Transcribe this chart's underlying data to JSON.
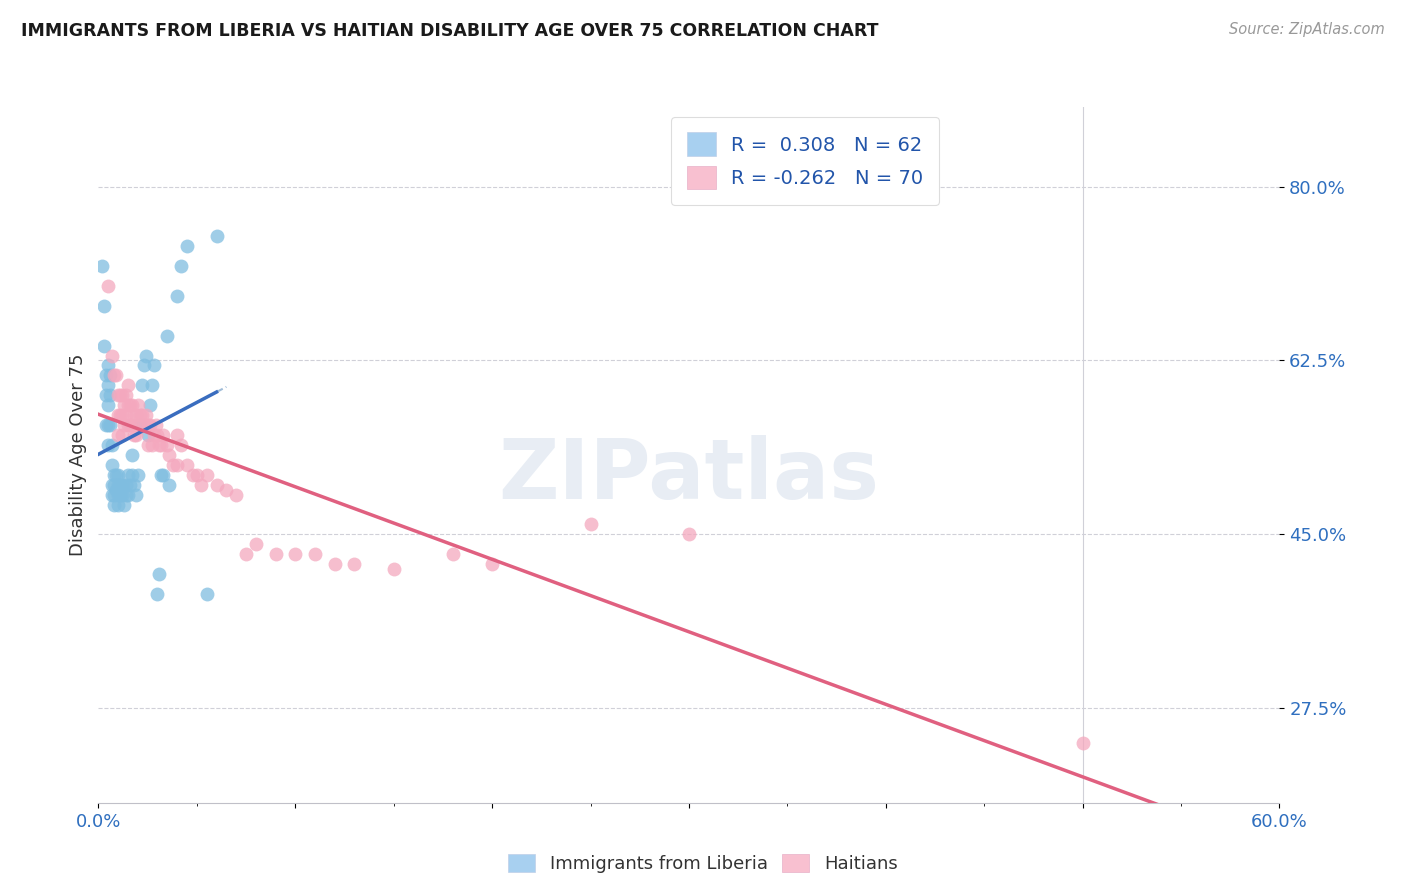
{
  "title": "IMMIGRANTS FROM LIBERIA VS HAITIAN DISABILITY AGE OVER 75 CORRELATION CHART",
  "source": "Source: ZipAtlas.com",
  "ylabel": "Disability Age Over 75",
  "y_ticks": [
    0.275,
    0.45,
    0.625,
    0.8
  ],
  "y_tick_labels": [
    "27.5%",
    "45.0%",
    "62.5%",
    "80.0%"
  ],
  "x_min": 0.0,
  "x_max": 0.6,
  "y_min": 0.18,
  "y_max": 0.88,
  "liberia_color": "#7fbde0",
  "haitian_color": "#f4a8be",
  "liberia_legend_color": "#a8d0f0",
  "haitian_legend_color": "#f8c0d0",
  "watermark": "ZIPatlas",
  "liberia_points": [
    [
      0.002,
      0.72
    ],
    [
      0.003,
      0.68
    ],
    [
      0.003,
      0.64
    ],
    [
      0.004,
      0.61
    ],
    [
      0.004,
      0.59
    ],
    [
      0.004,
      0.56
    ],
    [
      0.005,
      0.62
    ],
    [
      0.005,
      0.6
    ],
    [
      0.005,
      0.58
    ],
    [
      0.005,
      0.56
    ],
    [
      0.005,
      0.54
    ],
    [
      0.006,
      0.61
    ],
    [
      0.006,
      0.59
    ],
    [
      0.006,
      0.56
    ],
    [
      0.007,
      0.54
    ],
    [
      0.007,
      0.52
    ],
    [
      0.007,
      0.5
    ],
    [
      0.007,
      0.49
    ],
    [
      0.008,
      0.51
    ],
    [
      0.008,
      0.5
    ],
    [
      0.008,
      0.49
    ],
    [
      0.008,
      0.48
    ],
    [
      0.009,
      0.51
    ],
    [
      0.009,
      0.495
    ],
    [
      0.01,
      0.51
    ],
    [
      0.01,
      0.5
    ],
    [
      0.01,
      0.49
    ],
    [
      0.01,
      0.48
    ],
    [
      0.011,
      0.5
    ],
    [
      0.011,
      0.49
    ],
    [
      0.012,
      0.5
    ],
    [
      0.012,
      0.49
    ],
    [
      0.013,
      0.48
    ],
    [
      0.014,
      0.5
    ],
    [
      0.014,
      0.49
    ],
    [
      0.015,
      0.51
    ],
    [
      0.015,
      0.49
    ],
    [
      0.016,
      0.5
    ],
    [
      0.017,
      0.53
    ],
    [
      0.017,
      0.51
    ],
    [
      0.018,
      0.5
    ],
    [
      0.019,
      0.49
    ],
    [
      0.02,
      0.51
    ],
    [
      0.021,
      0.56
    ],
    [
      0.022,
      0.6
    ],
    [
      0.023,
      0.62
    ],
    [
      0.024,
      0.63
    ],
    [
      0.025,
      0.55
    ],
    [
      0.026,
      0.58
    ],
    [
      0.027,
      0.6
    ],
    [
      0.028,
      0.62
    ],
    [
      0.03,
      0.39
    ],
    [
      0.031,
      0.41
    ],
    [
      0.032,
      0.51
    ],
    [
      0.033,
      0.51
    ],
    [
      0.035,
      0.65
    ],
    [
      0.036,
      0.5
    ],
    [
      0.04,
      0.69
    ],
    [
      0.042,
      0.72
    ],
    [
      0.045,
      0.74
    ],
    [
      0.055,
      0.39
    ],
    [
      0.06,
      0.75
    ]
  ],
  "haitian_points": [
    [
      0.005,
      0.7
    ],
    [
      0.007,
      0.63
    ],
    [
      0.008,
      0.61
    ],
    [
      0.009,
      0.61
    ],
    [
      0.01,
      0.59
    ],
    [
      0.01,
      0.57
    ],
    [
      0.01,
      0.55
    ],
    [
      0.011,
      0.59
    ],
    [
      0.011,
      0.57
    ],
    [
      0.012,
      0.59
    ],
    [
      0.012,
      0.57
    ],
    [
      0.012,
      0.55
    ],
    [
      0.013,
      0.58
    ],
    [
      0.013,
      0.56
    ],
    [
      0.014,
      0.59
    ],
    [
      0.014,
      0.57
    ],
    [
      0.015,
      0.6
    ],
    [
      0.015,
      0.58
    ],
    [
      0.015,
      0.56
    ],
    [
      0.016,
      0.58
    ],
    [
      0.016,
      0.56
    ],
    [
      0.017,
      0.58
    ],
    [
      0.017,
      0.56
    ],
    [
      0.018,
      0.57
    ],
    [
      0.018,
      0.55
    ],
    [
      0.019,
      0.57
    ],
    [
      0.019,
      0.55
    ],
    [
      0.02,
      0.58
    ],
    [
      0.02,
      0.56
    ],
    [
      0.021,
      0.57
    ],
    [
      0.022,
      0.57
    ],
    [
      0.023,
      0.56
    ],
    [
      0.024,
      0.57
    ],
    [
      0.025,
      0.56
    ],
    [
      0.025,
      0.54
    ],
    [
      0.026,
      0.56
    ],
    [
      0.027,
      0.54
    ],
    [
      0.028,
      0.55
    ],
    [
      0.029,
      0.56
    ],
    [
      0.03,
      0.55
    ],
    [
      0.031,
      0.54
    ],
    [
      0.032,
      0.54
    ],
    [
      0.033,
      0.55
    ],
    [
      0.035,
      0.54
    ],
    [
      0.036,
      0.53
    ],
    [
      0.038,
      0.52
    ],
    [
      0.04,
      0.55
    ],
    [
      0.04,
      0.52
    ],
    [
      0.042,
      0.54
    ],
    [
      0.045,
      0.52
    ],
    [
      0.048,
      0.51
    ],
    [
      0.05,
      0.51
    ],
    [
      0.052,
      0.5
    ],
    [
      0.055,
      0.51
    ],
    [
      0.06,
      0.5
    ],
    [
      0.065,
      0.495
    ],
    [
      0.07,
      0.49
    ],
    [
      0.075,
      0.43
    ],
    [
      0.08,
      0.44
    ],
    [
      0.09,
      0.43
    ],
    [
      0.1,
      0.43
    ],
    [
      0.11,
      0.43
    ],
    [
      0.12,
      0.42
    ],
    [
      0.13,
      0.42
    ],
    [
      0.15,
      0.415
    ],
    [
      0.18,
      0.43
    ],
    [
      0.2,
      0.42
    ],
    [
      0.25,
      0.46
    ],
    [
      0.3,
      0.45
    ],
    [
      0.5,
      0.24
    ]
  ]
}
